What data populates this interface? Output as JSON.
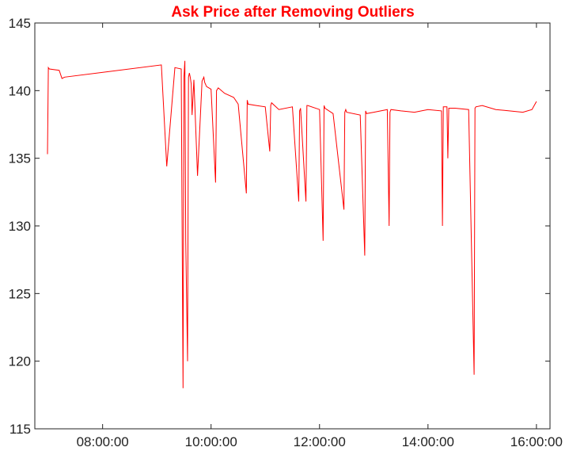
{
  "chart_data": {
    "type": "line",
    "title": "Ask Price after Removing Outliers",
    "xlabel": "",
    "ylabel": "",
    "x_start": "07:00:00",
    "x_end": "16:00:00",
    "xlim": [
      "06:45:00",
      "16:15:00"
    ],
    "ylim": [
      115,
      145
    ],
    "xticks": [
      "08:00:00",
      "10:00:00",
      "12:00:00",
      "14:00:00",
      "16:00:00"
    ],
    "yticks": [
      115,
      120,
      125,
      130,
      135,
      140,
      145
    ],
    "grid": false,
    "legend": "none",
    "line_color": "#ff0000",
    "series": [
      {
        "x": [
          "06:59:00",
          "07:00:00",
          "07:01:00",
          "07:12:00",
          "07:15:00",
          "07:18:00",
          "09:05:00",
          "09:11:00",
          "09:20:00",
          "09:27:00",
          "09:29:00",
          "09:30:00",
          "09:31:00",
          "09:32:00",
          "09:34:00",
          "09:35:00",
          "09:36:00",
          "09:37:00",
          "09:38:00",
          "09:39:00",
          "09:41:00",
          "09:45:00",
          "09:50:00",
          "09:52:00",
          "09:53:00",
          "09:55:00",
          "10:00:00",
          "10:05:00",
          "10:06:00",
          "10:08:00",
          "10:15:00",
          "10:25:00",
          "10:30:00",
          "10:39:00",
          "10:40:00",
          "10:41:00",
          "10:50:00",
          "11:00:00",
          "11:05:00",
          "11:06:00",
          "11:07:00",
          "11:15:00",
          "11:30:00",
          "11:37:00",
          "11:38:00",
          "11:39:00",
          "11:45:00",
          "11:46:00",
          "11:47:00",
          "12:00:00",
          "12:04:00",
          "12:05:00",
          "12:06:00",
          "12:15:00",
          "12:27:00",
          "12:28:00",
          "12:29:00",
          "12:30:00",
          "12:45:00",
          "12:50:00",
          "12:51:00",
          "12:52:00",
          "13:00:00",
          "13:15:00",
          "13:17:00",
          "13:18:00",
          "13:19:00",
          "13:30:00",
          "13:45:00",
          "14:00:00",
          "14:15:00",
          "14:16:00",
          "14:17:00",
          "14:21:00",
          "14:22:00",
          "14:23:00",
          "14:30:00",
          "14:45:00",
          "14:51:00",
          "14:52:00",
          "14:53:00",
          "15:00:00",
          "15:15:00",
          "15:30:00",
          "15:45:00",
          "15:55:00",
          "16:00:00"
        ],
        "y": [
          135.3,
          141.7,
          141.6,
          141.5,
          140.9,
          141.0,
          141.9,
          134.4,
          141.7,
          141.6,
          118.0,
          141.0,
          142.2,
          128.9,
          120.0,
          141.0,
          141.3,
          141.0,
          140.5,
          138.2,
          140.8,
          133.7,
          140.7,
          141.0,
          140.6,
          140.3,
          140.1,
          133.2,
          140.0,
          140.2,
          139.8,
          139.5,
          139.0,
          132.4,
          139.3,
          139.0,
          138.9,
          138.8,
          135.5,
          138.9,
          139.1,
          138.6,
          138.8,
          131.8,
          138.5,
          138.7,
          131.8,
          138.9,
          138.9,
          138.6,
          128.9,
          138.9,
          138.7,
          138.3,
          131.2,
          138.4,
          138.6,
          138.4,
          138.2,
          127.8,
          138.5,
          138.3,
          138.4,
          138.6,
          130.0,
          138.4,
          138.6,
          138.5,
          138.4,
          138.6,
          138.5,
          130.0,
          138.8,
          138.8,
          135.0,
          138.7,
          138.7,
          138.6,
          119.0,
          138.7,
          138.8,
          138.9,
          138.6,
          138.5,
          138.4,
          138.6,
          139.2
        ]
      }
    ]
  }
}
